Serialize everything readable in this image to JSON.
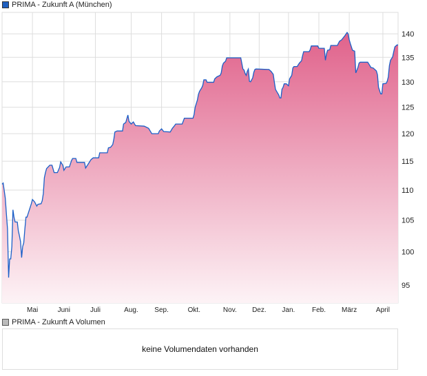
{
  "legend": {
    "price_label": "PRIMA - Zukunft A (München)",
    "price_color": "#1f5fbf",
    "volume_label": "PRIMA - Zukunft A Volumen",
    "volume_color": "#bbbbbb"
  },
  "volume": {
    "message": "keine Volumendaten vorhanden"
  },
  "chart_data": {
    "type": "area",
    "title": "PRIMA - Zukunft A (München)",
    "xlabel": "",
    "ylabel": "",
    "yscale": "log",
    "ylim": [
      92.4,
      144.7
    ],
    "xlim": [
      0,
      365
    ],
    "yticks": [
      95,
      100,
      105,
      110,
      115,
      120,
      125,
      130,
      135,
      140
    ],
    "xticks": [
      {
        "label": "Mai",
        "day": 28
      },
      {
        "label": "Juni",
        "day": 57
      },
      {
        "label": "Juli",
        "day": 86
      },
      {
        "label": "Aug.",
        "day": 119
      },
      {
        "label": "Sep.",
        "day": 147
      },
      {
        "label": "Okt.",
        "day": 177
      },
      {
        "label": "Nov.",
        "day": 210
      },
      {
        "label": "Dez.",
        "day": 237
      },
      {
        "label": "Jan.",
        "day": 264
      },
      {
        "label": "Feb.",
        "day": 292
      },
      {
        "label": "März",
        "day": 320
      },
      {
        "label": "April",
        "day": 351
      }
    ],
    "grid": true,
    "line_color": "#1a5fc8",
    "fill_top": "#e0628b",
    "fill_bottom": "#fdf3f6",
    "series": [
      {
        "name": "PRIMA - Zukunft A (München)",
        "points": [
          [
            0,
            111.0
          ],
          [
            1,
            111.2
          ],
          [
            3,
            108.6
          ],
          [
            4,
            106.0
          ],
          [
            5,
            103.6
          ],
          [
            6,
            96.1
          ],
          [
            7,
            98.9
          ],
          [
            8,
            98.9
          ],
          [
            9,
            100.8
          ],
          [
            10,
            106.7
          ],
          [
            11,
            105.5
          ],
          [
            12,
            104.7
          ],
          [
            14,
            104.7
          ],
          [
            15,
            103.3
          ],
          [
            16,
            102.5
          ],
          [
            17,
            101.6
          ],
          [
            18,
            99.1
          ],
          [
            19,
            100.8
          ],
          [
            20,
            101.4
          ],
          [
            21,
            103.6
          ],
          [
            22,
            105.5
          ],
          [
            23,
            105.5
          ],
          [
            27,
            107.7
          ],
          [
            28,
            108.4
          ],
          [
            30,
            108.0
          ],
          [
            32,
            107.3
          ],
          [
            33,
            107.6
          ],
          [
            36,
            107.7
          ],
          [
            37,
            108.2
          ],
          [
            38,
            109.4
          ],
          [
            39,
            112.1
          ],
          [
            40,
            113.0
          ],
          [
            41,
            113.7
          ],
          [
            44,
            114.3
          ],
          [
            46,
            114.3
          ],
          [
            48,
            113.0
          ],
          [
            51,
            113.0
          ],
          [
            53,
            113.9
          ],
          [
            54,
            114.9
          ],
          [
            56,
            114.3
          ],
          [
            57,
            113.4
          ],
          [
            59,
            114.0
          ],
          [
            62,
            114.0
          ],
          [
            64,
            115.1
          ],
          [
            65,
            115.5
          ],
          [
            68,
            115.5
          ],
          [
            69,
            114.8
          ],
          [
            76,
            114.8
          ],
          [
            77,
            113.8
          ],
          [
            79,
            114.4
          ],
          [
            82,
            115.3
          ],
          [
            84,
            115.6
          ],
          [
            89,
            115.6
          ],
          [
            90,
            116.5
          ],
          [
            97,
            116.5
          ],
          [
            98,
            117.4
          ],
          [
            100,
            117.5
          ],
          [
            102,
            118.0
          ],
          [
            103,
            119.0
          ],
          [
            104,
            120.3
          ],
          [
            106,
            120.5
          ],
          [
            111,
            120.5
          ],
          [
            112,
            121.8
          ],
          [
            114,
            122.1
          ],
          [
            116,
            123.5
          ],
          [
            117,
            122.3
          ],
          [
            119,
            121.8
          ],
          [
            121,
            122.2
          ],
          [
            123,
            121.5
          ],
          [
            131,
            121.4
          ],
          [
            135,
            121.0
          ],
          [
            138,
            120.0
          ],
          [
            144,
            120.0
          ],
          [
            145,
            120.5
          ],
          [
            147,
            120.9
          ],
          [
            149,
            120.4
          ],
          [
            155,
            120.3
          ],
          [
            157,
            121.0
          ],
          [
            159,
            121.5
          ],
          [
            160,
            121.8
          ],
          [
            166,
            121.8
          ],
          [
            168,
            122.9
          ],
          [
            176,
            122.9
          ],
          [
            177,
            123.6
          ],
          [
            178,
            125.0
          ],
          [
            180,
            126.4
          ],
          [
            181,
            127.5
          ],
          [
            182,
            128.1
          ],
          [
            184,
            128.8
          ],
          [
            185,
            129.3
          ],
          [
            186,
            130.4
          ],
          [
            188,
            130.4
          ],
          [
            189,
            129.9
          ],
          [
            195,
            129.9
          ],
          [
            196,
            130.6
          ],
          [
            198,
            131.0
          ],
          [
            201,
            131.3
          ],
          [
            202,
            131.8
          ],
          [
            203,
            133.2
          ],
          [
            204,
            133.8
          ],
          [
            206,
            134.2
          ],
          [
            207,
            134.9
          ],
          [
            220,
            134.9
          ],
          [
            222,
            132.6
          ],
          [
            223,
            132.4
          ],
          [
            224,
            131.7
          ],
          [
            225,
            131.3
          ],
          [
            226,
            132.1
          ],
          [
            227,
            132.6
          ],
          [
            228,
            130.1
          ],
          [
            229,
            130.0
          ],
          [
            231,
            130.8
          ],
          [
            232,
            131.9
          ],
          [
            233,
            132.5
          ],
          [
            234,
            132.6
          ],
          [
            246,
            132.5
          ],
          [
            248,
            132.1
          ],
          [
            250,
            131.5
          ],
          [
            251,
            129.9
          ],
          [
            252,
            128.5
          ],
          [
            253,
            128.1
          ],
          [
            255,
            127.4
          ],
          [
            256,
            126.8
          ],
          [
            257,
            126.8
          ],
          [
            258,
            128.5
          ],
          [
            259,
            128.9
          ],
          [
            260,
            129.6
          ],
          [
            262,
            129.6
          ],
          [
            264,
            129.2
          ],
          [
            265,
            130.6
          ],
          [
            267,
            131.3
          ],
          [
            268,
            132.8
          ],
          [
            269,
            133.1
          ],
          [
            272,
            133.1
          ],
          [
            274,
            133.8
          ],
          [
            276,
            134.3
          ],
          [
            277,
            135.4
          ],
          [
            278,
            136.2
          ],
          [
            283,
            136.2
          ],
          [
            284,
            136.6
          ],
          [
            285,
            137.4
          ],
          [
            291,
            137.4
          ],
          [
            292,
            136.9
          ],
          [
            297,
            136.9
          ],
          [
            298,
            134.4
          ],
          [
            299,
            135.7
          ],
          [
            300,
            136.5
          ],
          [
            302,
            136.6
          ],
          [
            303,
            137.5
          ],
          [
            309,
            137.5
          ],
          [
            311,
            138.4
          ],
          [
            313,
            138.7
          ],
          [
            316,
            139.6
          ],
          [
            318,
            140.3
          ],
          [
            319,
            140.0
          ],
          [
            320,
            138.7
          ],
          [
            321,
            137.9
          ],
          [
            323,
            136.5
          ],
          [
            325,
            136.3
          ],
          [
            326,
            131.8
          ],
          [
            328,
            132.9
          ],
          [
            329,
            133.8
          ],
          [
            330,
            134.0
          ],
          [
            337,
            134.0
          ],
          [
            339,
            133.3
          ],
          [
            340,
            132.9
          ],
          [
            342,
            132.8
          ],
          [
            345,
            132.2
          ],
          [
            346,
            131.4
          ],
          [
            347,
            128.9
          ],
          [
            349,
            127.6
          ],
          [
            350,
            127.6
          ],
          [
            351,
            129.6
          ],
          [
            354,
            129.7
          ],
          [
            355,
            130.1
          ],
          [
            356,
            131.0
          ],
          [
            357,
            133.3
          ],
          [
            358,
            134.4
          ],
          [
            360,
            135.1
          ],
          [
            361,
            136.2
          ],
          [
            362,
            137.2
          ],
          [
            364,
            137.6
          ],
          [
            365,
            137.6
          ]
        ]
      }
    ]
  }
}
